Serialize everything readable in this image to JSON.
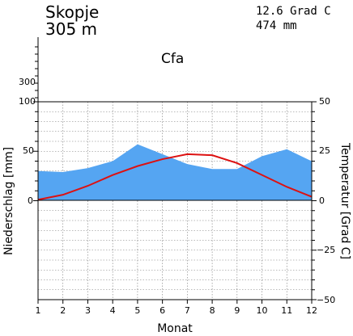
{
  "station": {
    "name": "Skopje",
    "elevation": "305 m",
    "mean_temp": "12.6 Grad C",
    "annual_precip": "474 mm",
    "climate_class": "Cfa"
  },
  "chart_data": {
    "type": "area",
    "x": [
      1,
      2,
      3,
      4,
      5,
      6,
      7,
      8,
      9,
      10,
      11,
      12
    ],
    "xlabel": "Monat",
    "ylabel_left": "Niederschlag [mm]",
    "ylabel_right": "Temperatur [Grad C]",
    "left_axis": {
      "ylim": [
        -100,
        100
      ],
      "tick_labels": [
        "0",
        "50",
        "100"
      ],
      "upper_tick_labels": [
        "300"
      ]
    },
    "right_axis": {
      "ylim": [
        -50,
        50
      ],
      "tick_labels": [
        "−50",
        "−25",
        "0",
        "25",
        "50"
      ]
    },
    "grid": true,
    "series": [
      {
        "name": "Niederschlag",
        "axis": "left",
        "unit": "mm",
        "color": "#55a5f2",
        "values": [
          30,
          29,
          33,
          40,
          57,
          47,
          37,
          32,
          32,
          45,
          52,
          40
        ]
      },
      {
        "name": "Temperatur",
        "axis": "right",
        "unit": "Grad C",
        "color": "#dd1111",
        "values": [
          0.5,
          3.0,
          7.5,
          13.0,
          17.5,
          21.0,
          23.5,
          23.0,
          19.0,
          13.0,
          7.0,
          2.0
        ]
      }
    ]
  }
}
